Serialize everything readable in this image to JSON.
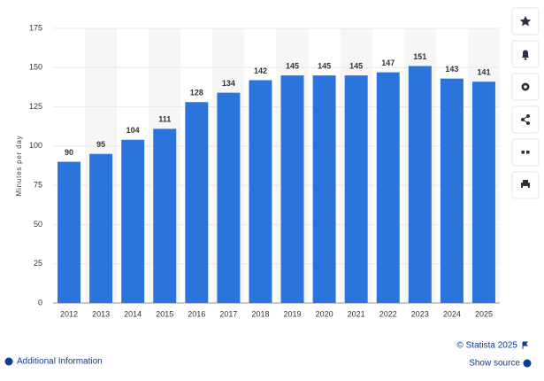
{
  "chart_data": {
    "type": "bar",
    "y_label": "Minutes per day",
    "categories": [
      "2012",
      "2013",
      "2014",
      "2015",
      "2016",
      "2017",
      "2018",
      "2019",
      "2020",
      "2021",
      "2022",
      "2023",
      "2024",
      "2025"
    ],
    "values": [
      90,
      95,
      104,
      111,
      128,
      134,
      142,
      145,
      145,
      145,
      147,
      151,
      143,
      141
    ],
    "color": "#2b74dc",
    "ylim": [
      0,
      175
    ],
    "yticks": [
      0,
      25,
      50,
      75,
      100,
      125,
      150,
      175
    ],
    "grid": true,
    "value_labels_shown": true
  },
  "footer": {
    "copyright": "© Statista 2025",
    "additional_info": "Additional Information",
    "show_source": "Show source"
  }
}
